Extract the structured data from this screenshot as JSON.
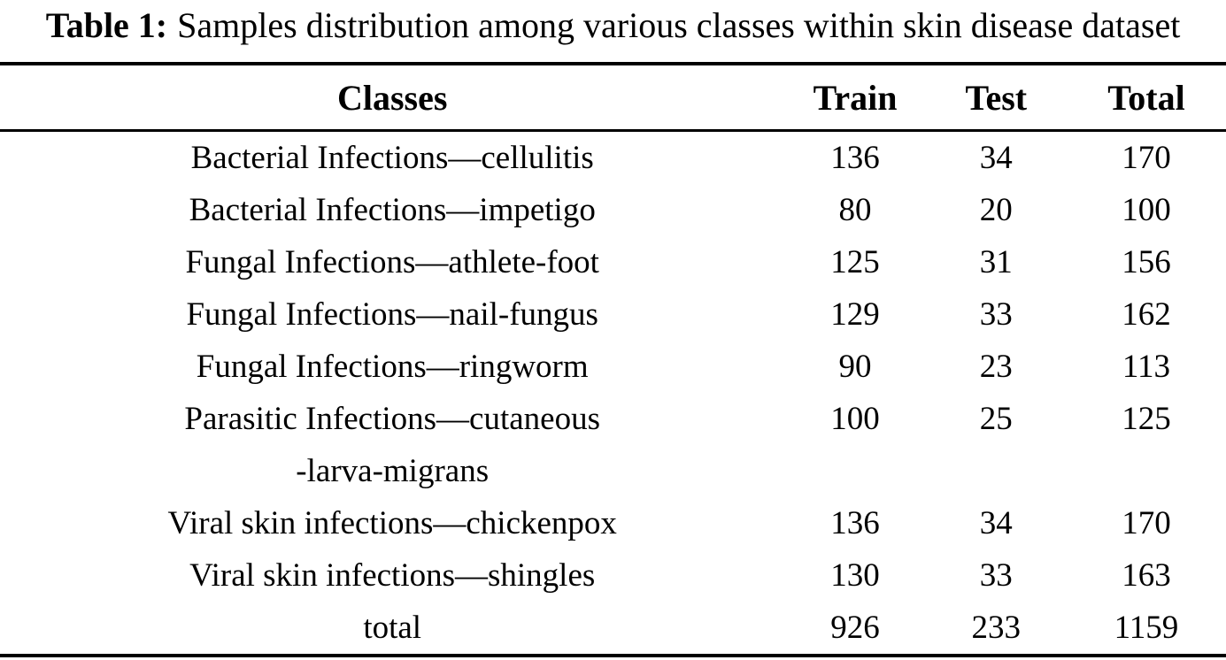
{
  "caption": {
    "label": "Table 1:",
    "text": "Samples distribution among various classes within skin disease dataset"
  },
  "table": {
    "columns": [
      "Classes",
      "Train",
      "Test",
      "Total"
    ],
    "rows": [
      {
        "name": "Bacterial Infections—cellulitis",
        "train": "136",
        "test": "34",
        "total": "170"
      },
      {
        "name": "Bacterial Infections—impetigo",
        "train": "80",
        "test": "20",
        "total": "100"
      },
      {
        "name": "Fungal Infections—athlete-foot",
        "train": "125",
        "test": "31",
        "total": "156"
      },
      {
        "name": "Fungal Infections—nail-fungus",
        "train": "129",
        "test": "33",
        "total": "162"
      },
      {
        "name": "Fungal Infections—ringworm",
        "train": "90",
        "test": "23",
        "total": "113"
      },
      {
        "name": "Parasitic Infections—cutaneous",
        "name2": "-larva-migrans",
        "train": "100",
        "test": "25",
        "total": "125"
      },
      {
        "name": "Viral skin infections—chickenpox",
        "train": "136",
        "test": "34",
        "total": "170"
      },
      {
        "name": "Viral skin infections—shingles",
        "train": "130",
        "test": "33",
        "total": "163"
      },
      {
        "name": "total",
        "train": "926",
        "test": "233",
        "total": "1159"
      }
    ]
  },
  "colors": {
    "text": "#000000",
    "background": "#ffffff",
    "rule": "#000000"
  },
  "chart_data": {
    "type": "table",
    "title": "Table 1: Samples distribution among various classes within skin disease dataset",
    "categories": [
      "Bacterial Infections—cellulitis",
      "Bacterial Infections—impetigo",
      "Fungal Infections—athlete-foot",
      "Fungal Infections—nail-fungus",
      "Fungal Infections—ringworm",
      "Parasitic Infections—cutaneous-larva-migrans",
      "Viral skin infections—chickenpox",
      "Viral skin infections—shingles",
      "total"
    ],
    "series": [
      {
        "name": "Train",
        "values": [
          136,
          80,
          125,
          129,
          90,
          100,
          136,
          130,
          926
        ]
      },
      {
        "name": "Test",
        "values": [
          34,
          20,
          31,
          33,
          23,
          25,
          34,
          33,
          233
        ]
      },
      {
        "name": "Total",
        "values": [
          170,
          100,
          156,
          162,
          113,
          125,
          170,
          163,
          1159
        ]
      }
    ]
  }
}
